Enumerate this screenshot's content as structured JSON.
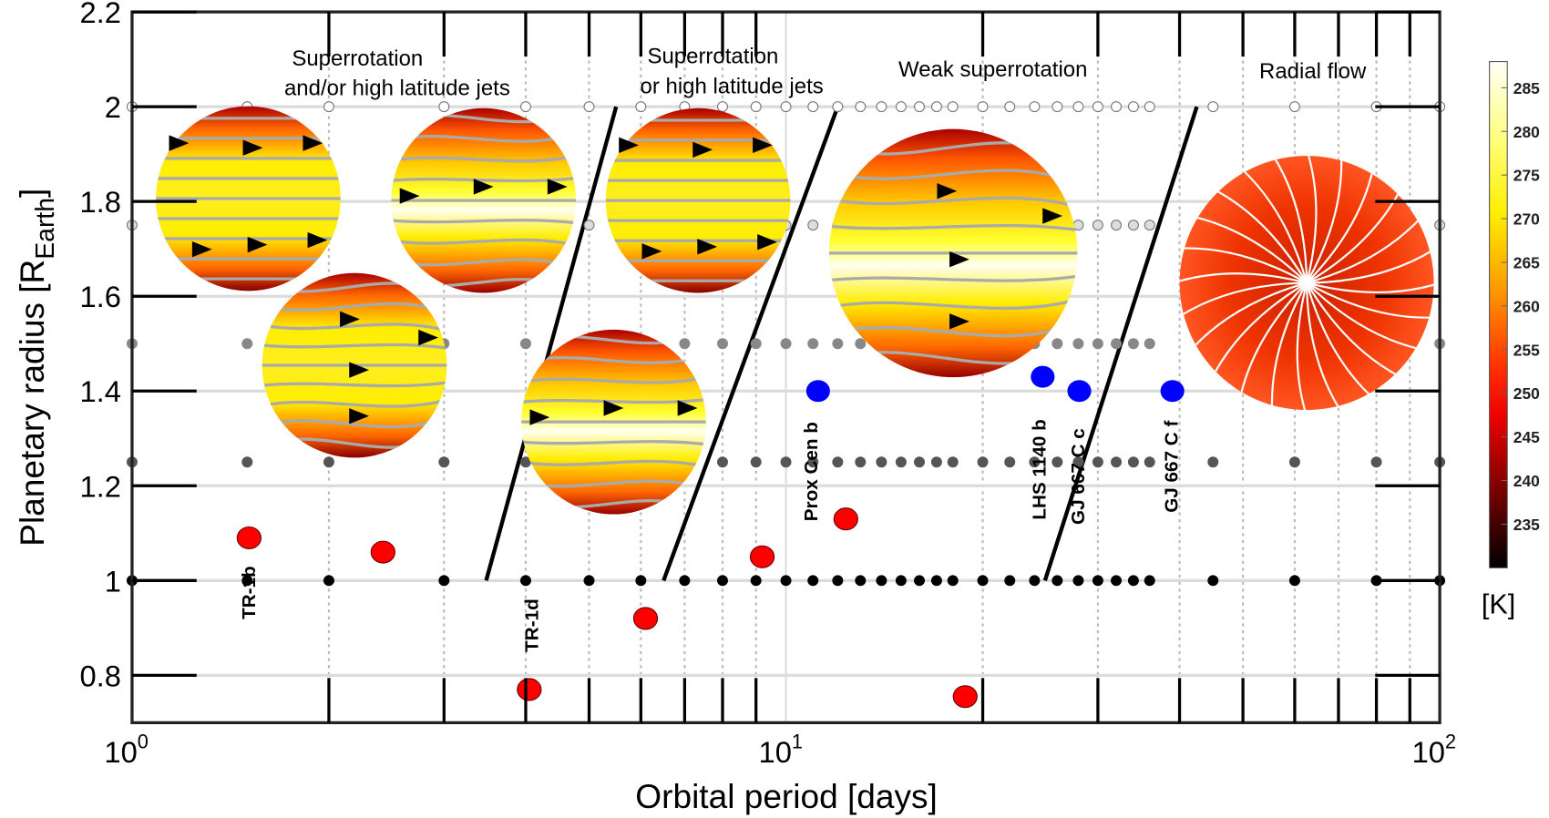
{
  "chart_data": {
    "type": "scatter",
    "title": "",
    "xlabel": "Orbital period [days]",
    "ylabel": {
      "main": "Planetary radius [R",
      "sub": "Earth",
      "close": "]"
    },
    "xscale": "log",
    "xlim": [
      1,
      100
    ],
    "ylim": [
      0.7,
      2.2
    ],
    "grid": true,
    "x_ticks": [
      {
        "base": "10",
        "exp": "0",
        "value": 1
      },
      {
        "base": "10",
        "exp": "1",
        "value": 10
      },
      {
        "base": "10",
        "exp": "2",
        "value": 100
      }
    ],
    "y_ticks": [
      "0.8",
      "1",
      "1.2",
      "1.4",
      "1.6",
      "1.8",
      "2",
      "2.2"
    ],
    "simulation_grid": {
      "periods": [
        1,
        1.5,
        2,
        3,
        4,
        5,
        6,
        7,
        8,
        9,
        10,
        11,
        12,
        13,
        14,
        15,
        16,
        17,
        18,
        20,
        22,
        24,
        26,
        28,
        30,
        32,
        34,
        36,
        45,
        60,
        80,
        100
      ],
      "radii": [
        {
          "value": 1.0,
          "color": "#000000"
        },
        {
          "value": 1.25,
          "color": "#555555"
        },
        {
          "value": 1.5,
          "color": "#888888"
        },
        {
          "value": 1.75,
          "color": "#dddddd"
        },
        {
          "value": 2.0,
          "color": "#ffffff"
        }
      ]
    },
    "series": [
      {
        "color": "#ff0000",
        "points": [
          {
            "x": 1.51,
            "y": 1.09,
            "label": "TR-1b"
          },
          {
            "x": 2.42,
            "y": 1.06,
            "label": ""
          },
          {
            "x": 4.05,
            "y": 0.77,
            "label": "TR-1d"
          },
          {
            "x": 6.1,
            "y": 0.92,
            "label": ""
          },
          {
            "x": 9.2,
            "y": 1.05,
            "label": ""
          },
          {
            "x": 12.35,
            "y": 1.13,
            "label": ""
          },
          {
            "x": 18.8,
            "y": 0.755,
            "label": ""
          }
        ]
      },
      {
        "color": "#0000ff",
        "points": [
          {
            "x": 11.2,
            "y": 1.4,
            "label": "Prox Cen b"
          },
          {
            "x": 24.7,
            "y": 1.43,
            "label": "LHS 1140 b"
          },
          {
            "x": 28.1,
            "y": 1.4,
            "label": "GJ 667 C c"
          },
          {
            "x": 39.0,
            "y": 1.4,
            "label": "GJ 667 C f"
          }
        ]
      }
    ],
    "regime_boundaries": [
      {
        "from": {
          "x": 3.48,
          "y": 1.0
        },
        "to": {
          "x": 5.5,
          "y": 2.0
        }
      },
      {
        "from": {
          "x": 6.5,
          "y": 1.0
        },
        "to": {
          "x": 12.0,
          "y": 2.0
        }
      },
      {
        "from": {
          "x": 24.9,
          "y": 1.0
        },
        "to": {
          "x": 42.5,
          "y": 2.0
        }
      }
    ],
    "regime_labels": [
      {
        "lines": [
          "Superrotation",
          "and/or high latitude jets"
        ]
      },
      {
        "lines": [
          "Superrotation",
          "or  high latitude jets"
        ]
      },
      {
        "lines": [
          "Weak superrotation"
        ]
      },
      {
        "lines": [
          "Radial flow"
        ]
      }
    ],
    "colorbar": {
      "label": "[K]",
      "range": [
        230,
        288
      ],
      "ticks": [
        "285",
        "280",
        "275",
        "270",
        "265",
        "260",
        "255",
        "250",
        "245",
        "240",
        "235"
      ],
      "colormap": [
        "#ffffff",
        "#ffff66",
        "#ffee00",
        "#ff9900",
        "#ff3300",
        "#ee0000",
        "#770000",
        "#000000"
      ]
    }
  }
}
